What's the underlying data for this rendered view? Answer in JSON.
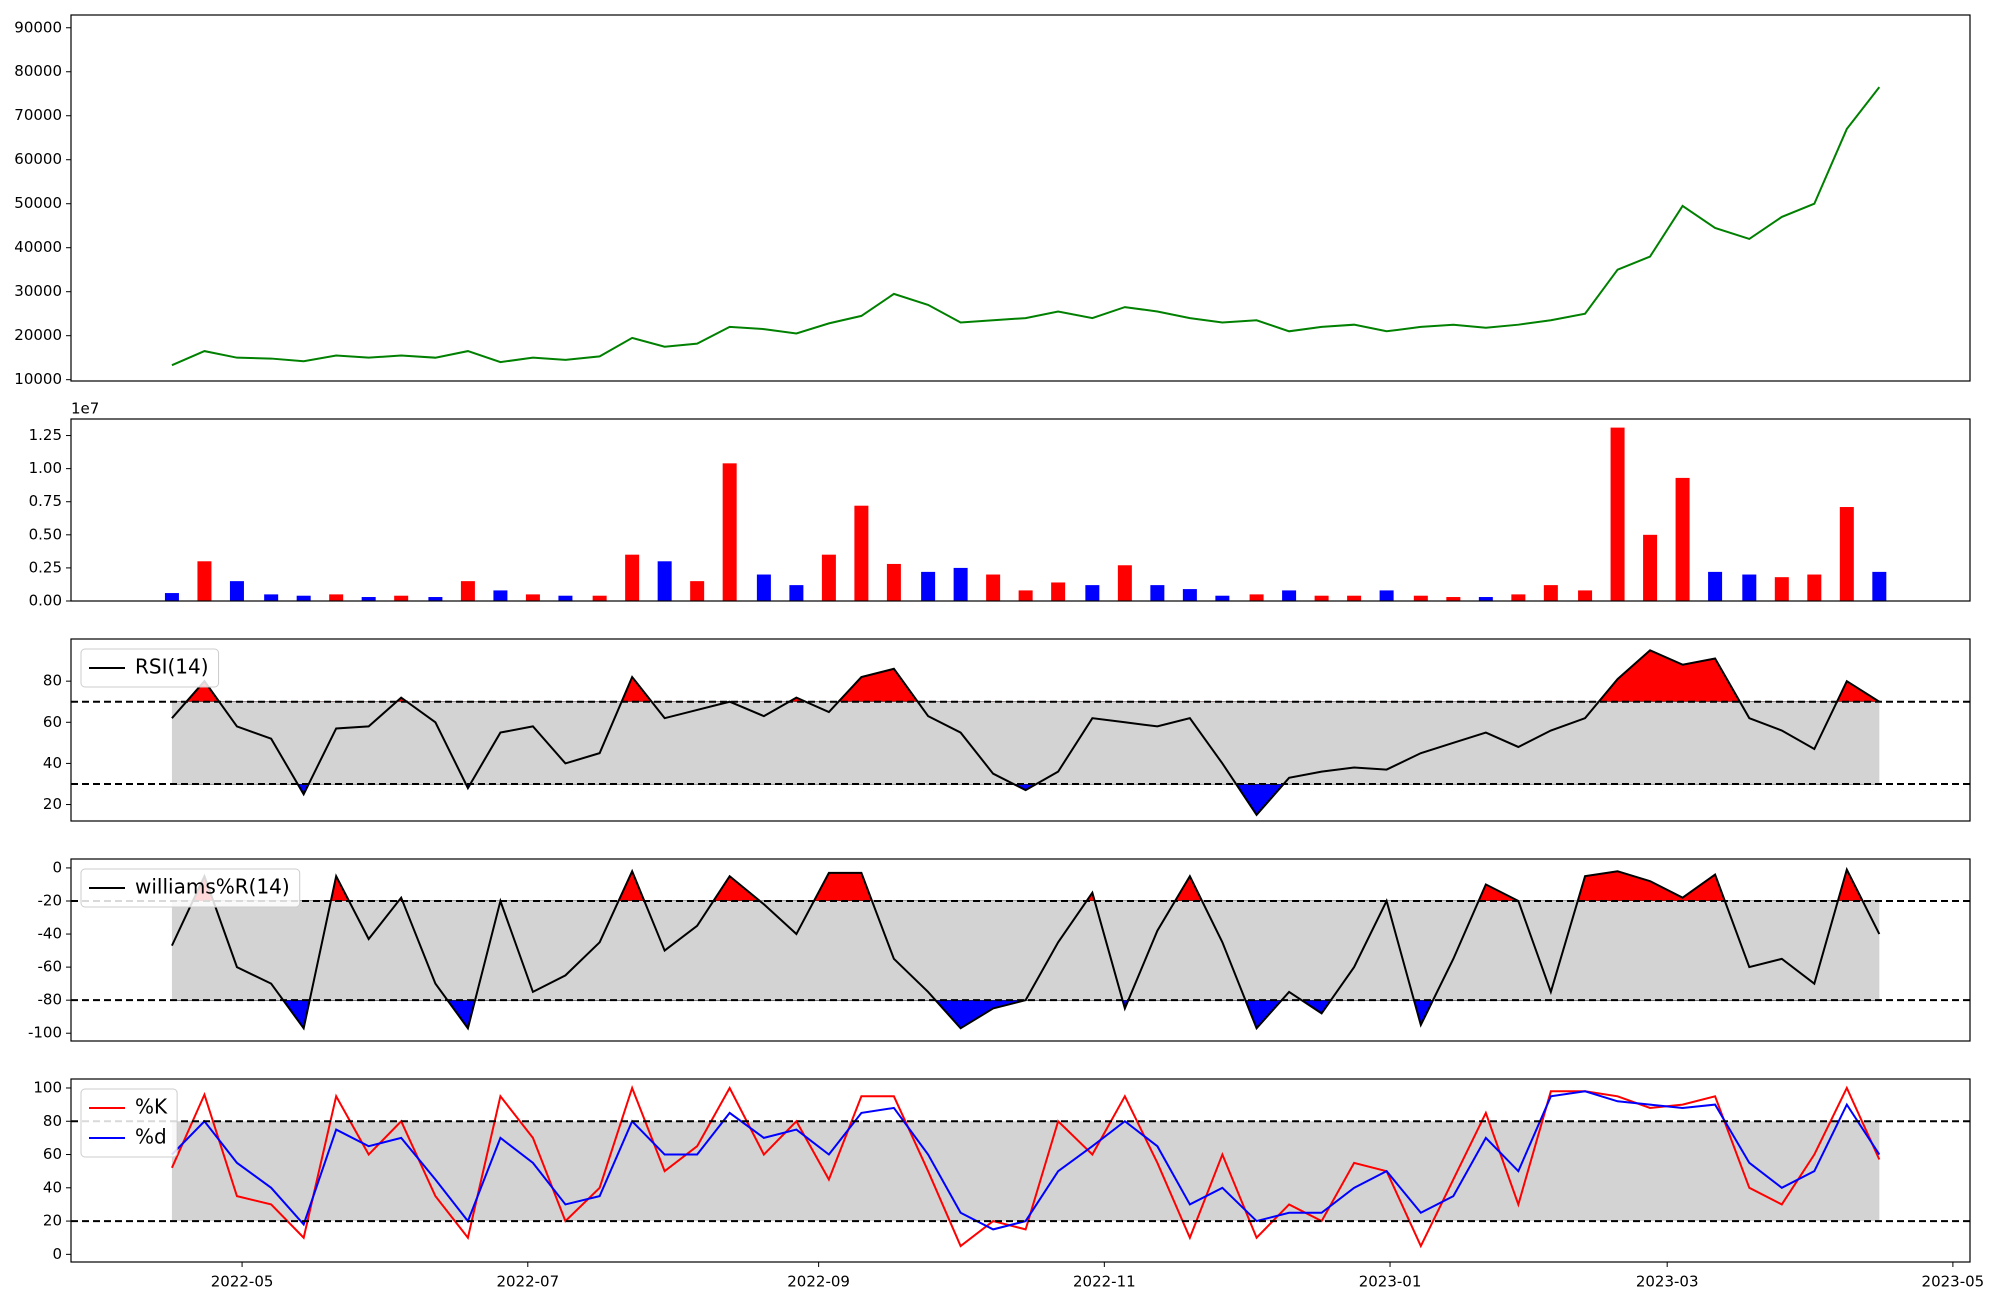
{
  "chart_data": [
    {
      "type": "line",
      "x": [
        2022.288,
        2022.307,
        2022.326,
        2022.346,
        2022.365,
        2022.384,
        2022.403,
        2022.422,
        2022.442,
        2022.461,
        2022.48,
        2022.499,
        2022.518,
        2022.538,
        2022.557,
        2022.576,
        2022.595,
        2022.614,
        2022.634,
        2022.653,
        2022.672,
        2022.691,
        2022.71,
        2022.73,
        2022.749,
        2022.768,
        2022.787,
        2022.806,
        2022.826,
        2022.845,
        2022.864,
        2022.883,
        2022.902,
        2022.922,
        2022.941,
        2022.96,
        2022.979,
        2022.998,
        2023.018,
        2023.037,
        2023.056,
        2023.075,
        2023.094,
        2023.114,
        2023.133,
        2023.152,
        2023.171,
        2023.19,
        2023.21,
        2023.229,
        2023.248,
        2023.267,
        2023.286
      ],
      "series": [
        {
          "color": "green",
          "values": [
            13300,
            16500,
            15000,
            14800,
            14200,
            15500,
            15000,
            15500,
            15000,
            16500,
            14000,
            15000,
            14500,
            15300,
            19500,
            17500,
            18200,
            22000,
            21500,
            20500,
            22800,
            24500,
            29500,
            27000,
            23000,
            23500,
            24000,
            25500,
            24000,
            26500,
            25500,
            24000,
            23000,
            23500,
            21000,
            22000,
            22500,
            21000,
            22000,
            22500,
            21800,
            22500,
            23500,
            25000,
            35000,
            38000,
            49500,
            44500,
            42000,
            47000,
            50000,
            67000,
            76500
          ]
        }
      ],
      "xlim": [
        2022.229,
        2023.339
      ],
      "ylim": [
        9700,
        92900
      ],
      "yticks": [
        10000,
        20000,
        30000,
        40000,
        50000,
        60000,
        70000,
        80000,
        90000
      ]
    },
    {
      "type": "bar",
      "x": [
        2022.288,
        2022.307,
        2022.326,
        2022.346,
        2022.365,
        2022.384,
        2022.403,
        2022.422,
        2022.442,
        2022.461,
        2022.48,
        2022.499,
        2022.518,
        2022.538,
        2022.557,
        2022.576,
        2022.595,
        2022.614,
        2022.634,
        2022.653,
        2022.672,
        2022.691,
        2022.71,
        2022.73,
        2022.749,
        2022.768,
        2022.787,
        2022.806,
        2022.826,
        2022.845,
        2022.864,
        2022.883,
        2022.902,
        2022.922,
        2022.941,
        2022.96,
        2022.979,
        2022.998,
        2023.018,
        2023.037,
        2023.056,
        2023.075,
        2023.094,
        2023.114,
        2023.133,
        2023.152,
        2023.171,
        2023.19,
        2023.21,
        2023.229,
        2023.248,
        2023.267,
        2023.286
      ],
      "offset_text": "1e7",
      "series": [
        {
          "values": [
            0.06,
            0.3,
            0.15,
            0.05,
            0.04,
            0.05,
            0.03,
            0.04,
            0.03,
            0.15,
            0.08,
            0.05,
            0.04,
            0.04,
            0.35,
            0.3,
            0.15,
            1.04,
            0.2,
            0.12,
            0.35,
            0.72,
            0.28,
            0.22,
            0.25,
            0.2,
            0.08,
            0.14,
            0.12,
            0.27,
            0.12,
            0.09,
            0.04,
            0.05,
            0.08,
            0.04,
            0.04,
            0.08,
            0.04,
            0.03,
            0.03,
            0.05,
            0.12,
            0.08,
            1.31,
            0.5,
            0.93,
            0.22,
            0.2,
            0.18,
            0.2,
            0.71,
            0.22
          ],
          "colors": [
            "blue",
            "red",
            "blue",
            "blue",
            "blue",
            "red",
            "blue",
            "red",
            "blue",
            "red",
            "blue",
            "red",
            "blue",
            "red",
            "red",
            "blue",
            "red",
            "red",
            "blue",
            "blue",
            "red",
            "red",
            "red",
            "blue",
            "blue",
            "red",
            "red",
            "red",
            "blue",
            "red",
            "blue",
            "blue",
            "blue",
            "red",
            "blue",
            "red",
            "red",
            "blue",
            "red",
            "red",
            "blue",
            "red",
            "red",
            "red",
            "red",
            "red",
            "red",
            "blue",
            "blue",
            "red",
            "red",
            "red",
            "blue"
          ]
        }
      ],
      "xlim": [
        2022.229,
        2023.339
      ],
      "ylim": [
        0,
        1.375
      ],
      "yticks": [
        {
          "value": 0,
          "label": "0.00"
        },
        {
          "value": 0.25,
          "label": "0.25"
        },
        {
          "value": 0.5,
          "label": "0.50"
        },
        {
          "value": 0.75,
          "label": "0.75"
        },
        {
          "value": 1,
          "label": "1.00"
        },
        {
          "value": 1.25,
          "label": "1.25"
        }
      ]
    },
    {
      "type": "line",
      "x": [
        2022.288,
        2022.307,
        2022.326,
        2022.346,
        2022.365,
        2022.384,
        2022.403,
        2022.422,
        2022.442,
        2022.461,
        2022.48,
        2022.499,
        2022.518,
        2022.538,
        2022.557,
        2022.576,
        2022.595,
        2022.614,
        2022.634,
        2022.653,
        2022.672,
        2022.691,
        2022.71,
        2022.73,
        2022.749,
        2022.768,
        2022.787,
        2022.806,
        2022.826,
        2022.845,
        2022.864,
        2022.883,
        2022.902,
        2022.922,
        2022.941,
        2022.96,
        2022.979,
        2022.998,
        2023.018,
        2023.037,
        2023.056,
        2023.075,
        2023.094,
        2023.114,
        2023.133,
        2023.152,
        2023.171,
        2023.19,
        2023.21,
        2023.229,
        2023.248,
        2023.267,
        2023.286
      ],
      "series": [
        {
          "name": "RSI(14)",
          "color": "black",
          "values": [
            62,
            80,
            58,
            52,
            25,
            57,
            58,
            72,
            60,
            28,
            55,
            58,
            40,
            45,
            82,
            62,
            66,
            70,
            63,
            72,
            65,
            82,
            86,
            63,
            55,
            35,
            27,
            36,
            62,
            60,
            58,
            62,
            40,
            15,
            33,
            36,
            38,
            37,
            45,
            50,
            55,
            48,
            56,
            62,
            81,
            95,
            88,
            91,
            62,
            56,
            47,
            80,
            70
          ]
        }
      ],
      "thresholds": [
        70,
        30
      ],
      "band_color": "lightgray",
      "fills": {
        "above": "red",
        "below": "blue"
      },
      "legend": "upper left",
      "xlim": [
        2022.229,
        2023.339
      ],
      "ylim": [
        12,
        100.5
      ],
      "yticks": [
        20,
        40,
        60,
        80
      ]
    },
    {
      "type": "line",
      "x": [
        2022.288,
        2022.307,
        2022.326,
        2022.346,
        2022.365,
        2022.384,
        2022.403,
        2022.422,
        2022.442,
        2022.461,
        2022.48,
        2022.499,
        2022.518,
        2022.538,
        2022.557,
        2022.576,
        2022.595,
        2022.614,
        2022.634,
        2022.653,
        2022.672,
        2022.691,
        2022.71,
        2022.73,
        2022.749,
        2022.768,
        2022.787,
        2022.806,
        2022.826,
        2022.845,
        2022.864,
        2022.883,
        2022.902,
        2022.922,
        2022.941,
        2022.96,
        2022.979,
        2022.998,
        2023.018,
        2023.037,
        2023.056,
        2023.075,
        2023.094,
        2023.114,
        2023.133,
        2023.152,
        2023.171,
        2023.19,
        2023.21,
        2023.229,
        2023.248,
        2023.267,
        2023.286
      ],
      "series": [
        {
          "name": "williams%R(14)",
          "color": "black",
          "values": [
            -47,
            -5,
            -60,
            -70,
            -97,
            -5,
            -43,
            -18,
            -70,
            -97,
            -20,
            -75,
            -65,
            -45,
            -2,
            -50,
            -35,
            -5,
            -22,
            -40,
            -3,
            -3,
            -55,
            -75,
            -97,
            -85,
            -80,
            -45,
            -15,
            -85,
            -38,
            -5,
            -45,
            -97,
            -75,
            -88,
            -60,
            -20,
            -95,
            -55,
            -10,
            -20,
            -75,
            -5,
            -2,
            -8,
            -18,
            -4,
            -60,
            -55,
            -70,
            -1,
            -40
          ]
        }
      ],
      "thresholds": [
        -20,
        -80
      ],
      "band_color": "lightgray",
      "fills": {
        "above": "red",
        "below": "blue"
      },
      "legend": "upper left",
      "xlim": [
        2022.229,
        2023.339
      ],
      "ylim": [
        -104.7,
        5.4
      ],
      "yticks": [
        -100,
        -80,
        -60,
        -40,
        -20,
        0
      ]
    },
    {
      "type": "line",
      "x": [
        2022.288,
        2022.307,
        2022.326,
        2022.346,
        2022.365,
        2022.384,
        2022.403,
        2022.422,
        2022.442,
        2022.461,
        2022.48,
        2022.499,
        2022.518,
        2022.538,
        2022.557,
        2022.576,
        2022.595,
        2022.614,
        2022.634,
        2022.653,
        2022.672,
        2022.691,
        2022.71,
        2022.73,
        2022.749,
        2022.768,
        2022.787,
        2022.806,
        2022.826,
        2022.845,
        2022.864,
        2022.883,
        2022.902,
        2022.922,
        2022.941,
        2022.96,
        2022.979,
        2022.998,
        2023.018,
        2023.037,
        2023.056,
        2023.075,
        2023.094,
        2023.114,
        2023.133,
        2023.152,
        2023.171,
        2023.19,
        2023.21,
        2023.229,
        2023.248,
        2023.267,
        2023.286
      ],
      "series": [
        {
          "name": "%K",
          "color": "red",
          "values": [
            52,
            96,
            35,
            30,
            10,
            95,
            60,
            80,
            35,
            10,
            95,
            70,
            20,
            40,
            100,
            50,
            65,
            100,
            60,
            80,
            45,
            95,
            95,
            50,
            5,
            20,
            15,
            80,
            60,
            95,
            55,
            10,
            60,
            10,
            30,
            20,
            55,
            50,
            5,
            45,
            85,
            30,
            98,
            98,
            95,
            88,
            90,
            95,
            40,
            30,
            60,
            100,
            57
          ]
        },
        {
          "name": "%d",
          "color": "blue",
          "values": [
            60,
            80,
            55,
            40,
            18,
            75,
            65,
            70,
            45,
            20,
            70,
            55,
            30,
            35,
            80,
            60,
            60,
            85,
            70,
            75,
            60,
            85,
            88,
            60,
            25,
            15,
            20,
            50,
            65,
            80,
            65,
            30,
            40,
            20,
            25,
            25,
            40,
            50,
            25,
            35,
            70,
            50,
            95,
            98,
            92,
            90,
            88,
            90,
            55,
            40,
            50,
            90,
            60
          ]
        }
      ],
      "thresholds": [
        80,
        20
      ],
      "band_color": "lightgray",
      "legend": "upper left",
      "xlim": [
        2022.229,
        2023.339
      ],
      "ylim": [
        -4.6,
        105.4
      ],
      "yticks": [
        0,
        20,
        40,
        60,
        80,
        100
      ],
      "xticks": [
        {
          "value": 2022.329,
          "label": "2022-05"
        },
        {
          "value": 2022.496,
          "label": "2022-07"
        },
        {
          "value": 2022.666,
          "label": "2022-09"
        },
        {
          "value": 2022.833,
          "label": "2022-11"
        },
        {
          "value": 2023.0,
          "label": "2023-01"
        },
        {
          "value": 2023.162,
          "label": "2023-03"
        },
        {
          "value": 2023.329,
          "label": "2023-05"
        }
      ]
    }
  ]
}
